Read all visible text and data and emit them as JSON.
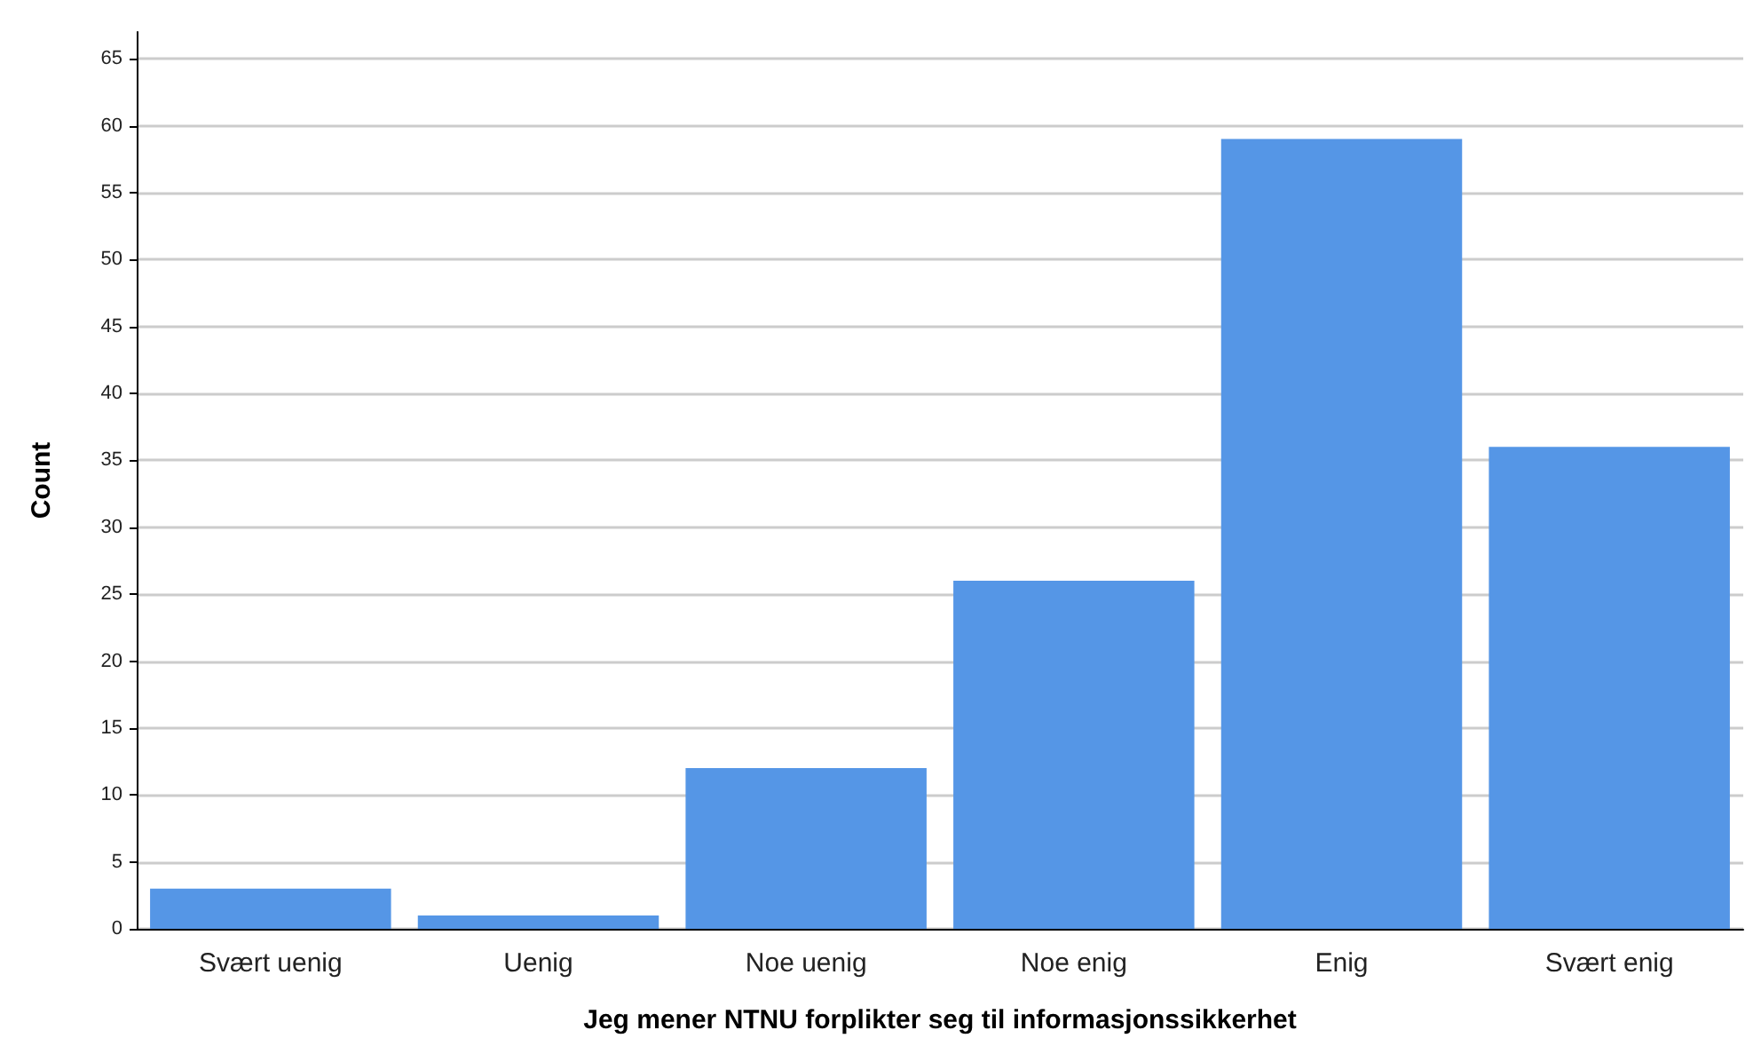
{
  "chart_data": {
    "type": "bar",
    "xlabel": "Jeg mener NTNU forplikter seg til informasjonssikkerhet",
    "ylabel": "Count",
    "categories": [
      "Svært uenig",
      "Uenig",
      "Noe uenig",
      "Noe enig",
      "Enig",
      "Svært enig"
    ],
    "values": [
      3,
      1,
      12,
      26,
      59,
      36
    ],
    "color": "#5596e6",
    "ylim": [
      0,
      67
    ],
    "yticks": [
      0,
      5,
      10,
      15,
      20,
      25,
      30,
      35,
      40,
      45,
      50,
      55,
      60,
      65
    ],
    "grid": "y"
  }
}
